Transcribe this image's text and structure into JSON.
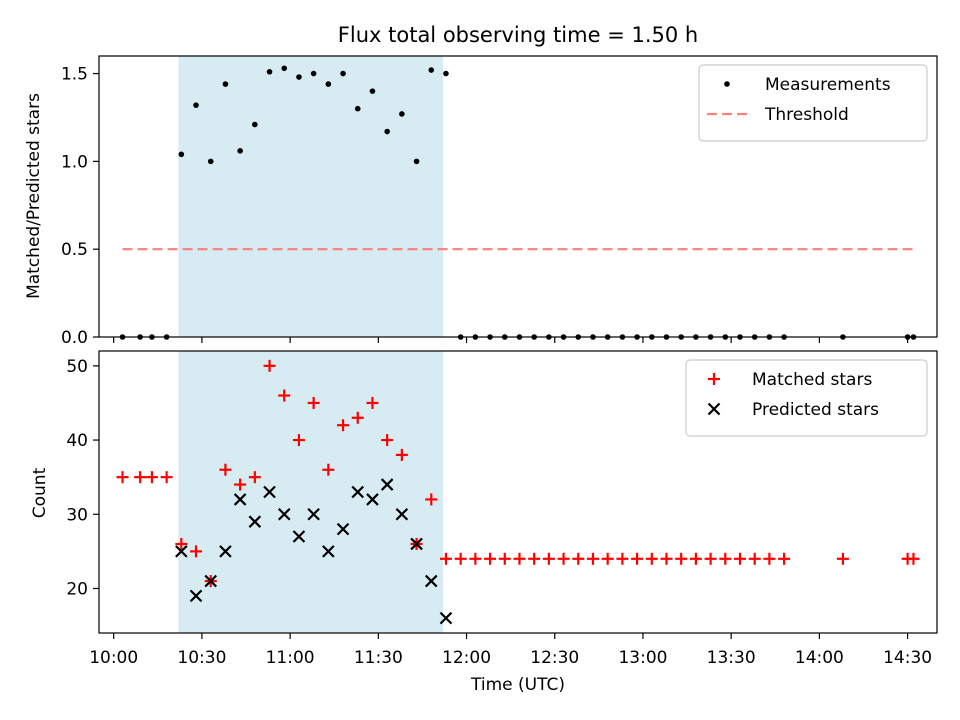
{
  "chart_data": [
    {
      "type": "scatter",
      "title": "Flux total observing time = 1.50 h",
      "ylabel": "Matched/Predicted stars",
      "xlabel": "",
      "xlim": [
        "09:55",
        "14:40"
      ],
      "ylim": [
        0,
        1.6
      ],
      "yticks": [
        0.0,
        0.5,
        1.0,
        1.5
      ],
      "ytick_labels": [
        "0.0",
        "0.5",
        "1.0",
        "1.5"
      ],
      "shaded_interval": [
        "10:22",
        "11:52"
      ],
      "legend_position": "top-right",
      "series": [
        {
          "name": "Measurements",
          "marker": "dot",
          "color": "#000000",
          "points": [
            [
              "10:03",
              0.0
            ],
            [
              "10:09",
              0.0
            ],
            [
              "10:13",
              0.0
            ],
            [
              "10:18",
              0.0
            ],
            [
              "10:23",
              1.04
            ],
            [
              "10:28",
              1.32
            ],
            [
              "10:33",
              1.0
            ],
            [
              "10:38",
              1.44
            ],
            [
              "10:43",
              1.06
            ],
            [
              "10:48",
              1.21
            ],
            [
              "10:53",
              1.51
            ],
            [
              "10:58",
              1.53
            ],
            [
              "11:03",
              1.48
            ],
            [
              "11:08",
              1.5
            ],
            [
              "11:13",
              1.44
            ],
            [
              "11:18",
              1.5
            ],
            [
              "11:23",
              1.3
            ],
            [
              "11:28",
              1.4
            ],
            [
              "11:33",
              1.17
            ],
            [
              "11:38",
              1.27
            ],
            [
              "11:43",
              1.0
            ],
            [
              "11:48",
              1.52
            ],
            [
              "11:53",
              1.5
            ],
            [
              "11:58",
              0.0
            ],
            [
              "12:03",
              0.0
            ],
            [
              "12:08",
              0.0
            ],
            [
              "12:13",
              0.0
            ],
            [
              "12:18",
              0.0
            ],
            [
              "12:23",
              0.0
            ],
            [
              "12:28",
              0.0
            ],
            [
              "12:33",
              0.0
            ],
            [
              "12:38",
              0.0
            ],
            [
              "12:43",
              0.0
            ],
            [
              "12:48",
              0.0
            ],
            [
              "12:53",
              0.0
            ],
            [
              "12:58",
              0.0
            ],
            [
              "13:03",
              0.0
            ],
            [
              "13:08",
              0.0
            ],
            [
              "13:13",
              0.0
            ],
            [
              "13:18",
              0.0
            ],
            [
              "13:23",
              0.0
            ],
            [
              "13:28",
              0.0
            ],
            [
              "13:33",
              0.0
            ],
            [
              "13:38",
              0.0
            ],
            [
              "13:43",
              0.0
            ],
            [
              "13:48",
              0.0
            ],
            [
              "14:08",
              0.0
            ],
            [
              "14:30",
              0.0
            ],
            [
              "14:32",
              0.0
            ]
          ]
        },
        {
          "name": "Threshold",
          "marker": "dashed-line",
          "color": "#ff7f7f",
          "points": [
            [
              "10:03",
              0.5
            ],
            [
              "14:32",
              0.5
            ]
          ]
        }
      ]
    },
    {
      "type": "scatter",
      "title": "",
      "ylabel": "Count",
      "xlabel": "Time (UTC)",
      "xlim": [
        "09:55",
        "14:40"
      ],
      "ylim": [
        14,
        52
      ],
      "yticks": [
        20,
        30,
        40,
        50
      ],
      "ytick_labels": [
        "20",
        "30",
        "40",
        "50"
      ],
      "xticks": [
        "10:00",
        "10:30",
        "11:00",
        "11:30",
        "12:00",
        "12:30",
        "13:00",
        "13:30",
        "14:00",
        "14:30"
      ],
      "shaded_interval": [
        "10:22",
        "11:52"
      ],
      "legend_position": "top-right",
      "series": [
        {
          "name": "Matched stars",
          "marker": "plus",
          "color": "#ff0000",
          "points": [
            [
              "10:03",
              35
            ],
            [
              "10:09",
              35
            ],
            [
              "10:13",
              35
            ],
            [
              "10:18",
              35
            ],
            [
              "10:23",
              26
            ],
            [
              "10:28",
              25
            ],
            [
              "10:33",
              21
            ],
            [
              "10:38",
              36
            ],
            [
              "10:43",
              34
            ],
            [
              "10:48",
              35
            ],
            [
              "10:53",
              50
            ],
            [
              "10:58",
              46
            ],
            [
              "11:03",
              40
            ],
            [
              "11:08",
              45
            ],
            [
              "11:13",
              36
            ],
            [
              "11:18",
              42
            ],
            [
              "11:23",
              43
            ],
            [
              "11:28",
              45
            ],
            [
              "11:33",
              40
            ],
            [
              "11:38",
              38
            ],
            [
              "11:43",
              26
            ],
            [
              "11:48",
              32
            ],
            [
              "11:53",
              24
            ],
            [
              "11:58",
              24
            ],
            [
              "12:03",
              24
            ],
            [
              "12:08",
              24
            ],
            [
              "12:13",
              24
            ],
            [
              "12:18",
              24
            ],
            [
              "12:23",
              24
            ],
            [
              "12:28",
              24
            ],
            [
              "12:33",
              24
            ],
            [
              "12:38",
              24
            ],
            [
              "12:43",
              24
            ],
            [
              "12:48",
              24
            ],
            [
              "12:53",
              24
            ],
            [
              "12:58",
              24
            ],
            [
              "13:03",
              24
            ],
            [
              "13:08",
              24
            ],
            [
              "13:13",
              24
            ],
            [
              "13:18",
              24
            ],
            [
              "13:23",
              24
            ],
            [
              "13:28",
              24
            ],
            [
              "13:33",
              24
            ],
            [
              "13:38",
              24
            ],
            [
              "13:43",
              24
            ],
            [
              "13:48",
              24
            ],
            [
              "14:08",
              24
            ],
            [
              "14:30",
              24
            ],
            [
              "14:32",
              24
            ]
          ]
        },
        {
          "name": "Predicted stars",
          "marker": "x",
          "color": "#000000",
          "points": [
            [
              "10:23",
              25
            ],
            [
              "10:28",
              19
            ],
            [
              "10:33",
              21
            ],
            [
              "10:38",
              25
            ],
            [
              "10:43",
              32
            ],
            [
              "10:48",
              29
            ],
            [
              "10:53",
              33
            ],
            [
              "10:58",
              30
            ],
            [
              "11:03",
              27
            ],
            [
              "11:08",
              30
            ],
            [
              "11:13",
              25
            ],
            [
              "11:18",
              28
            ],
            [
              "11:23",
              33
            ],
            [
              "11:28",
              32
            ],
            [
              "11:33",
              34
            ],
            [
              "11:38",
              30
            ],
            [
              "11:43",
              26
            ],
            [
              "11:48",
              21
            ],
            [
              "11:53",
              16
            ]
          ]
        }
      ]
    }
  ]
}
